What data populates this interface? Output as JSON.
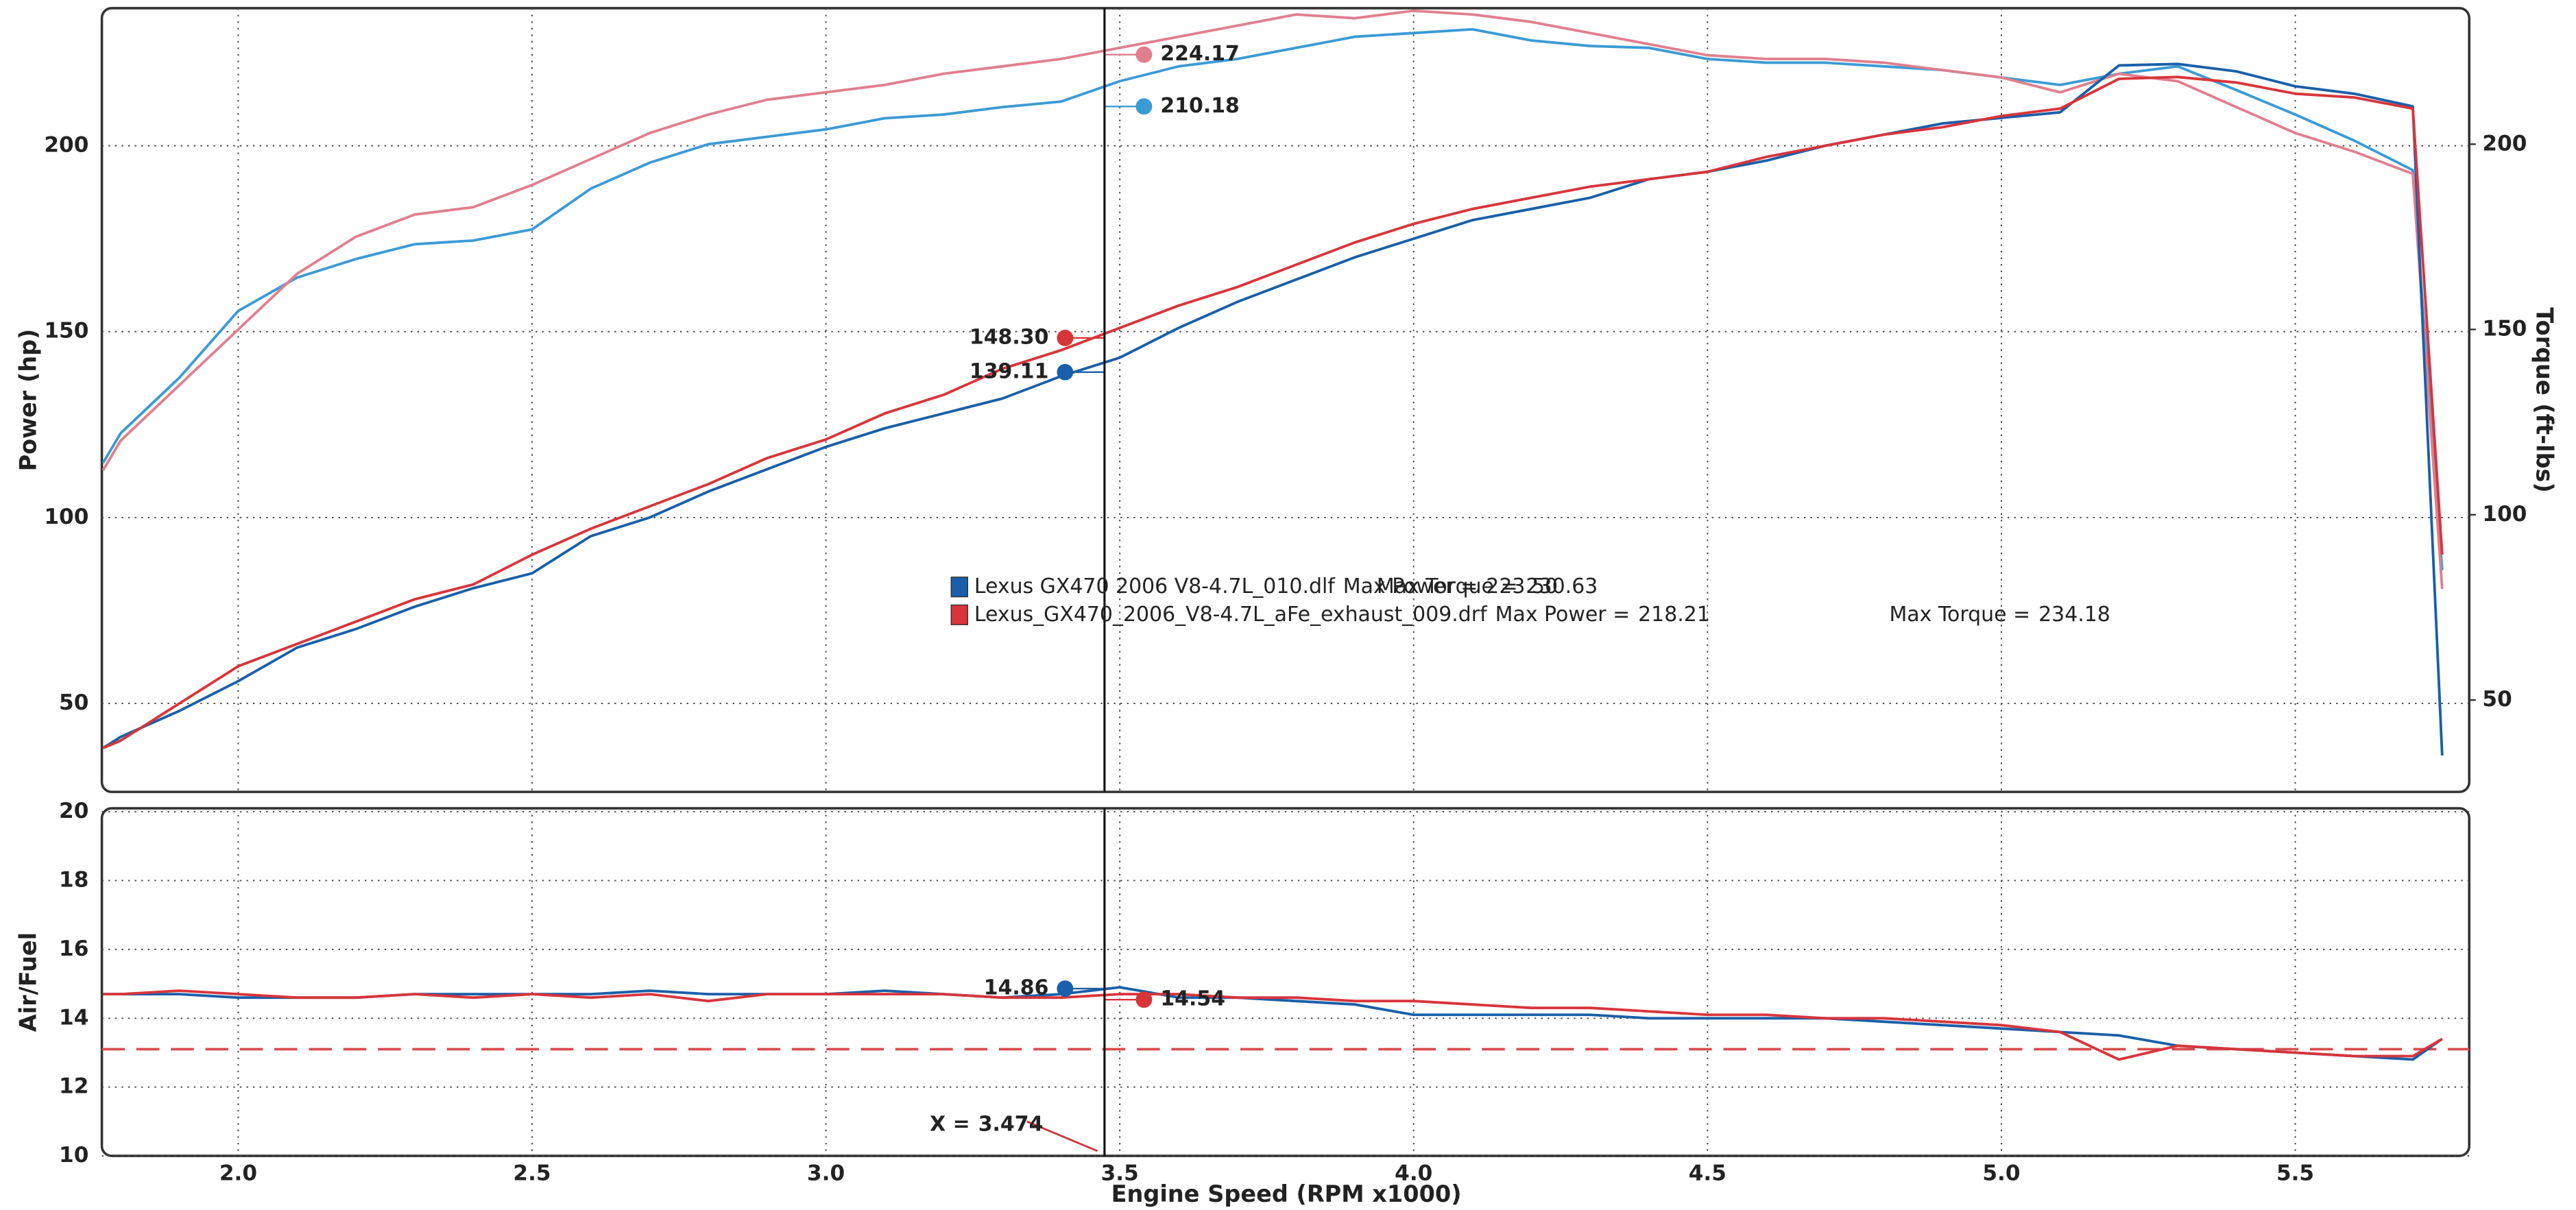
{
  "chart_data": [
    {
      "type": "line",
      "ylabel": "Power (hp)",
      "y2label": "Torque (ft-lbs)",
      "xlim": [
        1.768,
        5.796
      ],
      "ylim": [
        26.2,
        237
      ],
      "yticks": [
        50,
        100,
        150,
        200
      ],
      "y2lim": [
        25.2,
        236.7
      ],
      "y2ticks": [
        50,
        100,
        150,
        200
      ],
      "grid": true,
      "cursor_x": 3.474,
      "x": [
        1.77,
        1.8,
        1.9,
        2.0,
        2.1,
        2.2,
        2.3,
        2.4,
        2.5,
        2.6,
        2.7,
        2.8,
        2.9,
        3.0,
        3.1,
        3.2,
        3.3,
        3.4,
        3.5,
        3.6,
        3.7,
        3.8,
        3.9,
        4.0,
        4.1,
        4.2,
        4.3,
        4.4,
        4.5,
        4.6,
        4.7,
        4.8,
        4.9,
        5.0,
        5.1,
        5.2,
        5.3,
        5.4,
        5.5,
        5.6,
        5.7,
        5.75
      ],
      "series": [
        {
          "run": 0,
          "axis": "y2",
          "color": "#3b9bd4",
          "cursor_value": 210.18,
          "values": [
            114,
            122,
            137,
            155,
            164,
            169,
            173,
            174,
            177,
            188,
            195,
            200,
            202,
            204,
            207,
            208,
            210,
            211.5,
            217,
            221,
            223,
            226,
            229,
            230,
            231,
            228,
            226.5,
            226,
            223,
            222,
            222,
            221,
            220,
            218,
            216,
            219,
            221,
            214.6,
            208,
            201,
            193,
            85
          ]
        },
        {
          "run": 1,
          "axis": "y2",
          "color": "#e07f8e",
          "cursor_value": 224.17,
          "values": [
            112,
            120,
            135,
            150,
            165,
            175,
            181,
            183,
            189,
            196,
            203,
            208,
            212,
            214,
            216,
            219,
            221,
            223,
            226,
            229,
            232,
            235,
            234,
            236,
            235,
            233,
            230,
            227,
            224,
            223,
            223,
            222,
            220,
            218,
            214,
            219,
            217,
            210,
            203,
            198,
            192,
            80
          ]
        },
        {
          "run": 0,
          "axis": "y",
          "color": "#1a5fa8",
          "cursor_value": 139.11,
          "values": [
            38,
            41,
            48,
            56,
            65,
            70,
            76,
            81,
            85,
            95,
            100,
            107,
            113,
            119,
            124,
            128,
            132,
            138,
            143,
            151,
            158,
            164,
            170,
            175,
            180,
            183,
            186,
            191,
            193,
            196,
            200,
            203,
            206,
            207.5,
            209,
            221.6,
            222,
            220,
            216,
            214,
            210.6,
            36
          ]
        },
        {
          "run": 1,
          "axis": "y",
          "color": "#d8353b",
          "cursor_value": {
            "value": 148.3,
            "label": "148.30"
          },
          "values": [
            38,
            40,
            50,
            60,
            66,
            72,
            78,
            82,
            90,
            97,
            103,
            109,
            116,
            121,
            128,
            133,
            140,
            145,
            151,
            157,
            162,
            168,
            174,
            179,
            183,
            186,
            189,
            191,
            193,
            197,
            200,
            203,
            205,
            208,
            210,
            218,
            218.5,
            217,
            214,
            213,
            210,
            90
          ]
        }
      ],
      "legend_labels": {
        "max_power": "Max Power =",
        "max_torque": "Max Torque ="
      },
      "runs": [
        {
          "name": "Lexus GX470 2006 V8-4.7L_010.dlf",
          "color": "#1a5fa8",
          "max_power": {
            "value": 223.5,
            "label": "223.50"
          },
          "max_torque": 230.63
        },
        {
          "name": "Lexus_GX470_2006_V8-4.7L_aFe_exhaust_009.drf",
          "color": "#d8353b",
          "max_power": 218.21,
          "max_torque": 234.18
        }
      ]
    },
    {
      "type": "line",
      "ylabel": "Air/Fuel",
      "xlabel": "Engine Speed (RPM x1000)",
      "xlim": [
        1.768,
        5.796
      ],
      "xticks": [
        {
          "value": 2,
          "label": "2.0"
        },
        2.5,
        {
          "value": 3,
          "label": "3.0"
        },
        3.5,
        {
          "value": 4,
          "label": "4.0"
        },
        4.5,
        {
          "value": 5,
          "label": "5.0"
        },
        5.5
      ],
      "ylim": [
        10,
        20.1
      ],
      "yticks": [
        10,
        12,
        14,
        16,
        18,
        20
      ],
      "grid": true,
      "reference": 13.1,
      "reference_color": "#d84a4a",
      "cursor_label": "X =",
      "cursor_x": 3.474,
      "x": [
        1.77,
        1.8,
        1.9,
        2.0,
        2.1,
        2.2,
        2.3,
        2.4,
        2.5,
        2.6,
        2.7,
        2.8,
        2.9,
        3.0,
        3.1,
        3.2,
        3.3,
        3.4,
        3.5,
        3.6,
        3.7,
        3.8,
        3.9,
        4.0,
        4.1,
        4.2,
        4.3,
        4.4,
        4.5,
        4.6,
        4.7,
        4.8,
        4.9,
        5.0,
        5.1,
        5.2,
        5.3,
        5.4,
        5.5,
        5.6,
        5.7,
        5.75
      ],
      "series": [
        {
          "run": 0,
          "color": "#1a5fa8",
          "cursor_value": 14.86,
          "values": [
            14.7,
            14.7,
            14.7,
            14.6,
            14.6,
            14.6,
            14.7,
            14.7,
            14.7,
            14.7,
            14.8,
            14.7,
            14.7,
            14.7,
            14.8,
            14.7,
            14.6,
            14.7,
            14.9,
            14.6,
            14.6,
            14.5,
            14.4,
            14.1,
            14.1,
            14.1,
            14.1,
            14.0,
            14.0,
            14.0,
            14.0,
            13.9,
            13.8,
            13.7,
            13.6,
            13.5,
            13.2,
            13.1,
            13.0,
            12.9,
            12.8,
            13.4
          ]
        },
        {
          "run": 1,
          "color": "#d8353b",
          "cursor_value": 14.54,
          "values": [
            14.7,
            14.7,
            14.8,
            14.7,
            14.6,
            14.6,
            14.7,
            14.6,
            14.7,
            14.6,
            14.7,
            14.5,
            14.7,
            14.7,
            14.7,
            14.7,
            14.6,
            14.6,
            14.7,
            14.7,
            14.6,
            14.6,
            14.5,
            14.5,
            14.4,
            14.3,
            14.3,
            14.2,
            14.1,
            14.1,
            14.0,
            14.0,
            13.9,
            13.8,
            13.6,
            12.8,
            13.2,
            13.1,
            13.0,
            12.9,
            12.9,
            13.4
          ]
        }
      ]
    }
  ]
}
